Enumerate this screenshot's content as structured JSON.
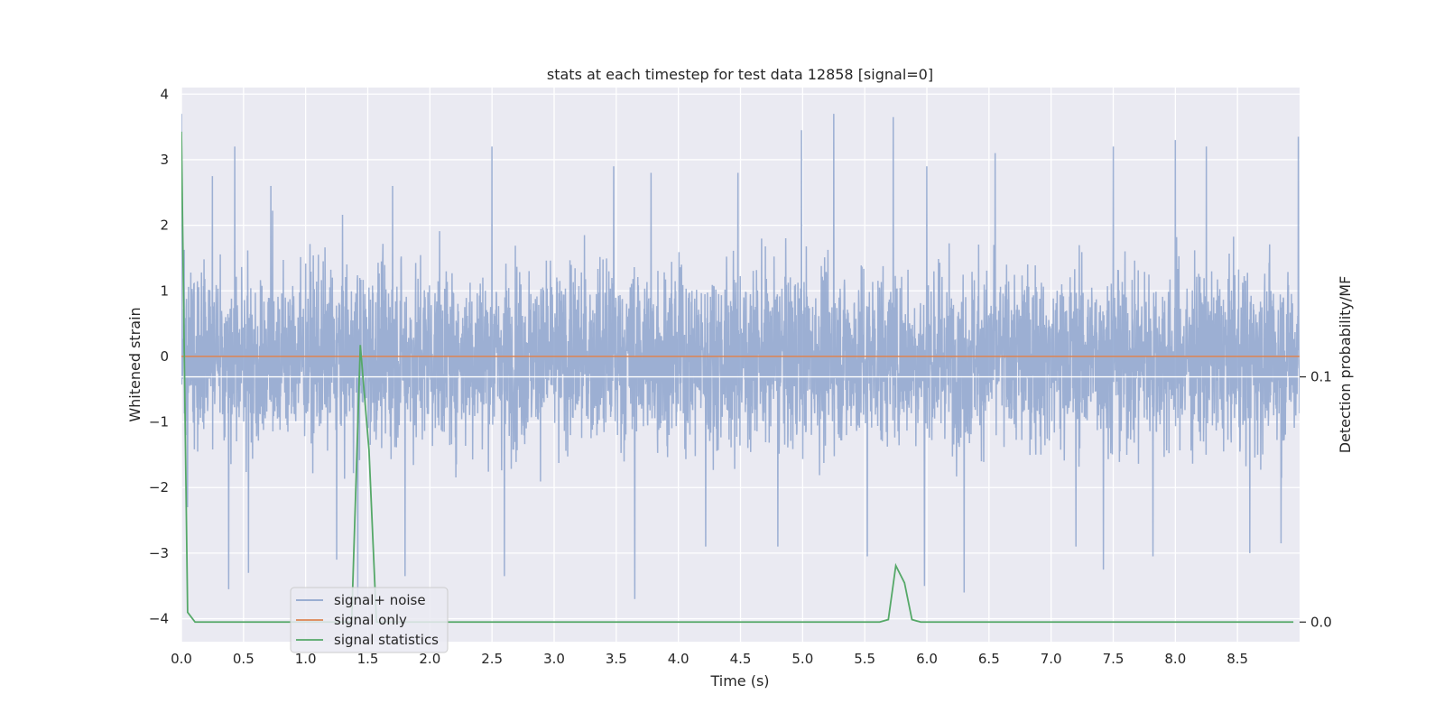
{
  "chart_data": {
    "type": "line",
    "title": "stats at each timestep for test data 12858 [signal=0]",
    "xlabel": "Time (s)",
    "ylabel": "Whitened strain",
    "y2label": "Detection probability/MF",
    "xlim": [
      0.0,
      9.0
    ],
    "ylim": [
      -4.35,
      4.1
    ],
    "y2lim": [
      -0.008,
      0.218
    ],
    "xticks": [
      "0.0",
      "0.5",
      "1.0",
      "1.5",
      "2.0",
      "2.5",
      "3.0",
      "3.5",
      "4.0",
      "4.5",
      "5.0",
      "5.5",
      "6.0",
      "6.5",
      "7.0",
      "7.5",
      "8.0",
      "8.5"
    ],
    "yticks": [
      "4",
      "3",
      "2",
      "1",
      "0",
      "−1",
      "−2",
      "−3",
      "−4"
    ],
    "y2ticks": [
      "0.1",
      "0.0"
    ],
    "grid": true,
    "legend_position": "lower-left",
    "colors": {
      "background": "#eaeaf2",
      "grid": "#ffffff",
      "noise": "#8ea5ce",
      "signal_only": "#dd8452",
      "statistics": "#55a868"
    },
    "series": [
      {
        "name": "signal+ noise",
        "axis": "left",
        "description_stats": {
          "typical_envelope": [
            -1.6,
            1.6
          ]
        },
        "peaks_x": [
          0.0,
          0.25,
          0.43,
          0.72,
          1.42,
          1.7,
          2.5,
          3.48,
          3.78,
          4.48,
          4.99,
          5.25,
          5.73,
          6.0,
          6.55,
          7.5,
          8.0,
          8.25,
          8.99
        ],
        "peaks_y": [
          3.7,
          2.75,
          3.2,
          2.6,
          2.8,
          2.6,
          3.2,
          2.9,
          2.8,
          2.8,
          3.45,
          3.7,
          3.65,
          2.9,
          3.1,
          3.2,
          3.3,
          3.2,
          3.35
        ],
        "troughs_x": [
          0.05,
          0.38,
          0.54,
          1.25,
          1.42,
          1.8,
          2.6,
          3.65,
          4.22,
          4.8,
          5.52,
          5.98,
          6.3,
          7.2,
          7.42,
          7.82,
          8.6,
          8.85
        ],
        "troughs_y": [
          -2.3,
          -3.55,
          -3.3,
          -3.1,
          -3.7,
          -3.35,
          -3.35,
          -3.7,
          -2.9,
          -2.9,
          -3.05,
          -3.5,
          -3.6,
          -2.9,
          -3.25,
          -3.05,
          -3.0,
          -2.85
        ]
      },
      {
        "name": "signal only",
        "axis": "left",
        "x": [
          0.0,
          9.0
        ],
        "y": [
          0.0,
          0.0
        ]
      },
      {
        "name": "signal statistics",
        "axis": "right",
        "x": [
          0.0,
          0.05,
          0.11,
          0.22,
          1.31,
          1.37,
          1.44,
          1.51,
          1.57,
          1.64,
          5.62,
          5.69,
          5.75,
          5.82,
          5.88,
          5.95,
          8.95
        ],
        "y": [
          0.2,
          0.004,
          0.0,
          0.0,
          0.0,
          0.0,
          0.113,
          0.07,
          0.0,
          0.0,
          0.0,
          0.001,
          0.023,
          0.016,
          0.001,
          0.0,
          0.0
        ]
      }
    ]
  }
}
